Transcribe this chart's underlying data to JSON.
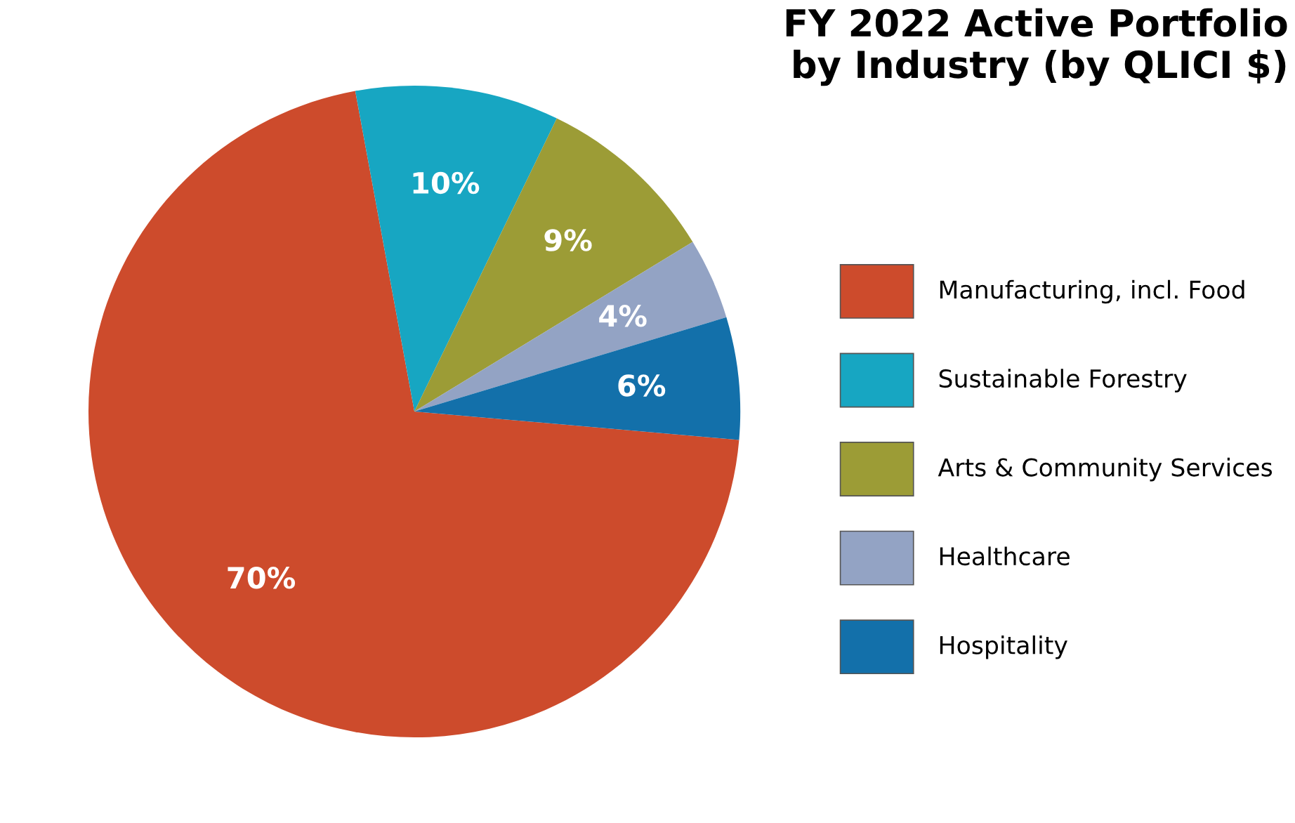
{
  "chart_data": {
    "type": "pie",
    "title": "FY 2022 Active Portfolio\nby Industry (by QLICI $)",
    "categories": [
      "Manufacturing, incl. Food",
      "Sustainable Forestry",
      "Arts & Community Services",
      "Healthcare",
      "Hospitality"
    ],
    "values": [
      70,
      10,
      9,
      4,
      6
    ],
    "colors": [
      "#cd4b2c",
      "#17a6c2",
      "#9c9c36",
      "#93a3c4",
      "#1370aa"
    ],
    "value_labels": [
      "70%",
      "10%",
      "9%",
      "4%",
      "6%"
    ],
    "legend": "right"
  }
}
